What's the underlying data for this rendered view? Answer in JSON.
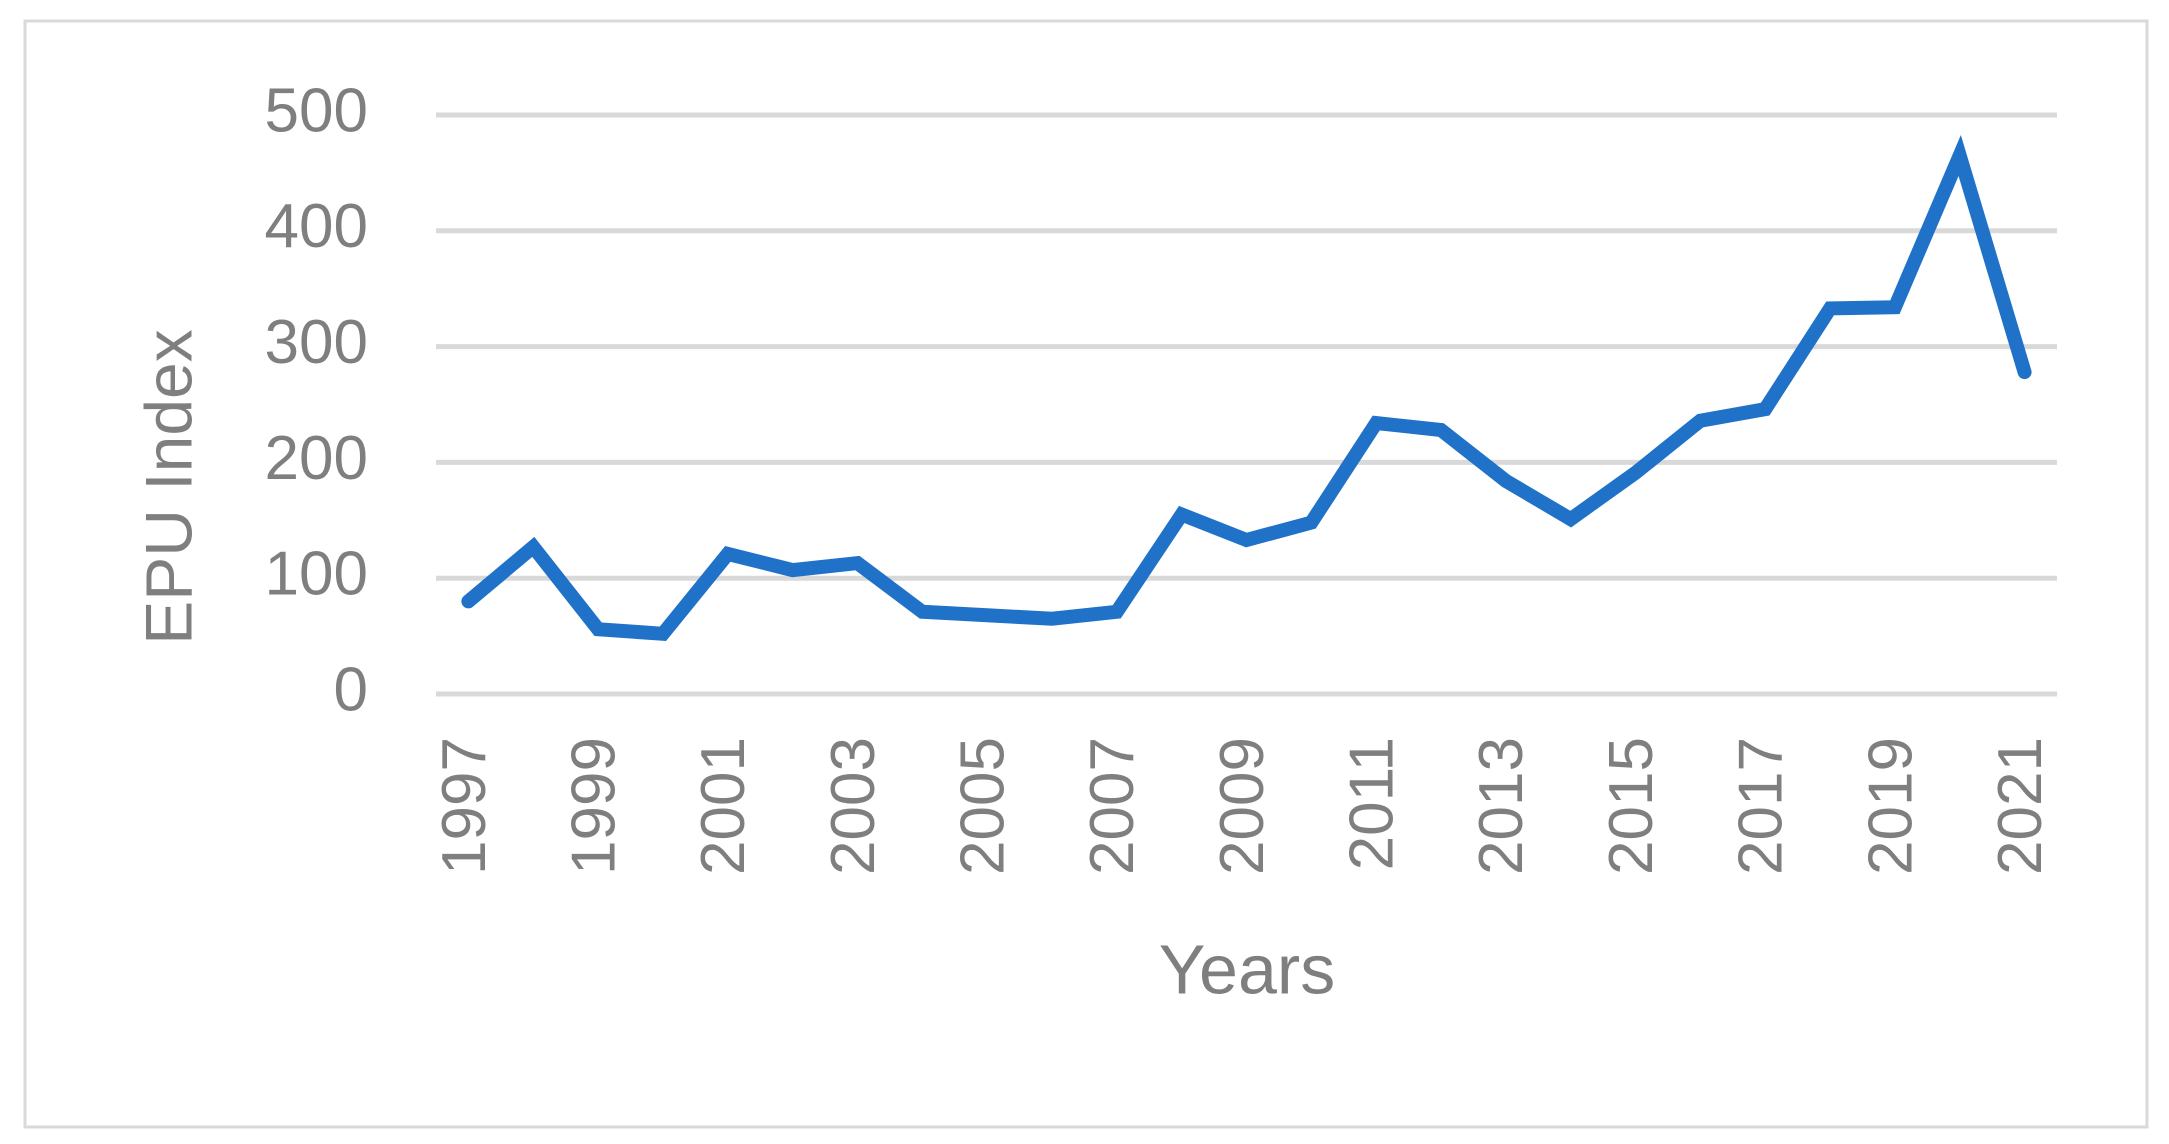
{
  "chart_data": {
    "type": "line",
    "x_label": "Years",
    "y_label": "EPU Index",
    "categories": [
      "1997",
      null,
      "1999",
      null,
      "2001",
      null,
      "2003",
      null,
      "2005",
      null,
      "2007",
      null,
      "2009",
      null,
      "2011",
      null,
      "2013",
      null,
      "2015",
      null,
      "2017",
      null,
      "2019",
      null,
      "2021"
    ],
    "values": [
      80,
      127,
      56,
      52,
      121,
      107,
      113,
      71,
      68,
      65,
      71,
      155,
      133,
      148,
      234,
      228,
      184,
      151,
      191,
      236,
      246,
      333,
      334,
      465,
      278
    ],
    "color": "#1f72c8",
    "ylim": [
      0,
      500
    ],
    "yticks": [
      0,
      100,
      200,
      300,
      400,
      500
    ],
    "grid": true
  }
}
